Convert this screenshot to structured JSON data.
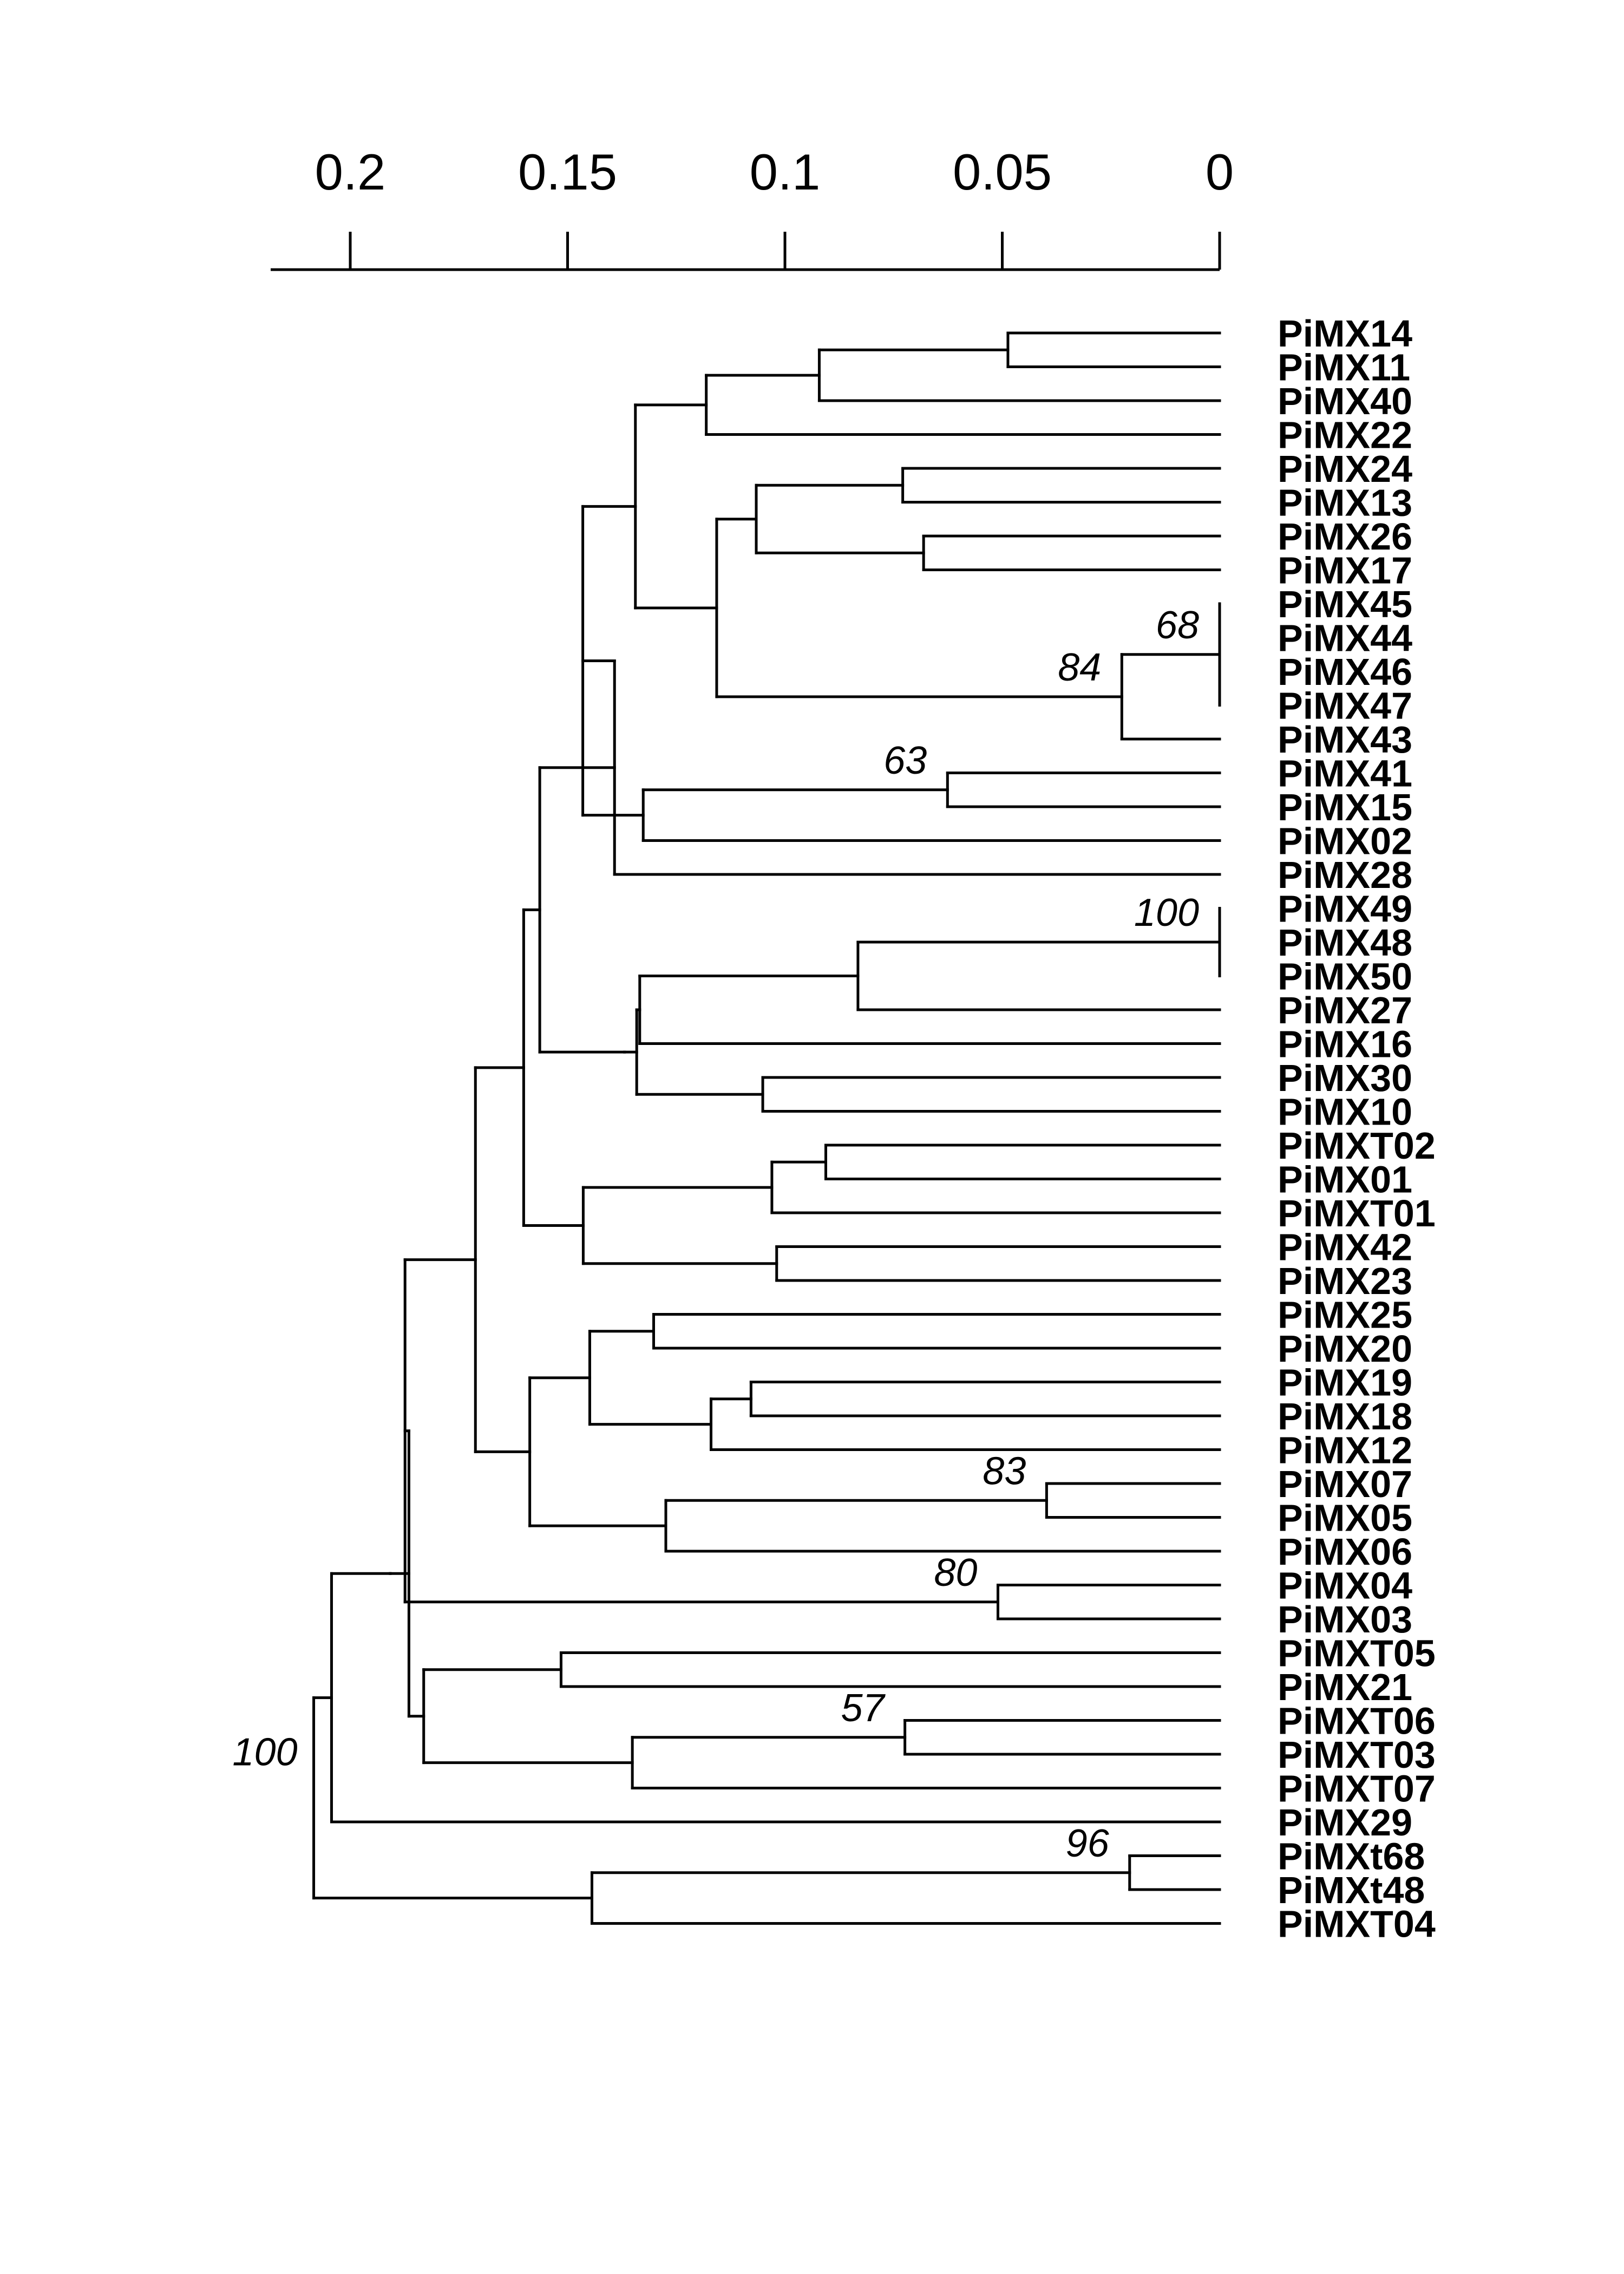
{
  "axis": {
    "ticks": [
      "0.2",
      "0.15",
      "0.1",
      "0.05",
      "0"
    ],
    "tick_values": [
      0.2,
      0.15,
      0.1,
      0.05,
      0
    ]
  },
  "leaves": [
    "PiMX14",
    "PiMX11",
    "PiMX40",
    "PiMX22",
    "PiMX24",
    "PiMX13",
    "PiMX26",
    "PiMX17",
    "PiMX45",
    "PiMX44",
    "PiMX46",
    "PiMX47",
    "PiMX43",
    "PiMX41",
    "PiMX15",
    "PiMX02",
    "PiMX28",
    "PiMX49",
    "PiMX48",
    "PiMX50",
    "PiMX27",
    "PiMX16",
    "PiMX30",
    "PiMX10",
    "PiMXT02",
    "PiMX01",
    "PiMXT01",
    "PiMX42",
    "PiMX23",
    "PiMX25",
    "PiMX20",
    "PiMX19",
    "PiMX18",
    "PiMX12",
    "PiMX07",
    "PiMX05",
    "PiMX06",
    "PiMX04",
    "PiMX03",
    "PiMXT05",
    "PiMX21",
    "PiMXT06",
    "PiMXT03",
    "PiMXT07",
    "PiMX29",
    "PiMXt68",
    "PiMXt48",
    "PiMXT04"
  ],
  "tree": {
    "d": 0.2084,
    "boot": "100",
    "c": [
      {
        "d": 0.2043,
        "c": [
          {
            "d": 0.1908,
            "c": [
              {
                "d": 0.1865,
                "c": [
                  {
                    "d": 0.1874,
                    "c": [
                      {
                        "d": 0.1712,
                        "c": [
                          {
                            "d": 0.1601,
                            "c": [
                              {
                                "d": 0.1564,
                                "c": [
                                  {
                                    "d": 0.1392,
                                    "c": [
                                      {
                                        "d": 0.1465,
                                        "c": [
                                          {
                                            "d": 0.1344,
                                            "c": [
                                              {
                                                "d": 0.1181,
                                                "c": [
                                                  {
                                                    "d": 0.0921,
                                                    "c": [
                                                      {
                                                        "d": 0.0487,
                                                        "c": [
                                                          {
                                                            "l": 0
                                                          },
                                                          {
                                                            "l": 1
                                                          }
                                                        ]
                                                      },
                                                      {
                                                        "l": 2
                                                      }
                                                    ]
                                                  },
                                                  {
                                                    "l": 3
                                                  }
                                                ]
                                              },
                                              {
                                                "d": 0.1157,
                                                "c": [
                                                  {
                                                    "d": 0.1066,
                                                    "c": [
                                                      {
                                                        "d": 0.0729,
                                                        "c": [
                                                          {
                                                            "l": 4
                                                          },
                                                          {
                                                            "l": 5
                                                          }
                                                        ]
                                                      },
                                                      {
                                                        "d": 0.0681,
                                                        "c": [
                                                          {
                                                            "l": 6
                                                          },
                                                          {
                                                            "l": 7
                                                          }
                                                        ]
                                                      }
                                                    ]
                                                  },
                                                  {
                                                    "d": 0.0225,
                                                    "boot": "84",
                                                    "c": [
                                                      {
                                                        "d": 0,
                                                        "boot": "68",
                                                        "c": [
                                                          {
                                                            "l": 8
                                                          },
                                                          {
                                                            "l": 9
                                                          },
                                                          {
                                                            "l": 10
                                                          },
                                                          {
                                                            "l": 11
                                                          }
                                                        ]
                                                      },
                                                      {
                                                        "l": 12
                                                      }
                                                    ]
                                                  }
                                                ]
                                              }
                                            ]
                                          },
                                          {
                                            "d": 0.1326,
                                            "c": [
                                              {
                                                "d": 0.0626,
                                                "boot": "63",
                                                "c": [
                                                  {
                                                    "l": 13
                                                  },
                                                  {
                                                    "l": 14
                                                  }
                                                ]
                                              },
                                              {
                                                "l": 15
                                              }
                                            ]
                                          }
                                        ]
                                      },
                                      {
                                        "l": 16
                                      }
                                    ]
                                  },
                                  {
                                    "d": 0.1369,
                                    "c": [
                                      {
                                        "d": 0.1341,
                                        "c": [
                                          {
                                            "d": 0.1334,
                                            "c": [
                                              {
                                                "d": 0.0832,
                                                "c": [
                                                  {
                                                    "d": 0,
                                                    "boot": "100",
                                                    "c": [
                                                      {
                                                        "l": 17
                                                      },
                                                      {
                                                        "l": 18
                                                      },
                                                      {
                                                        "l": 19
                                                      }
                                                    ]
                                                  },
                                                  {
                                                    "l": 20
                                                  }
                                                ]
                                              },
                                              {
                                                "l": 21
                                              }
                                            ]
                                          },
                                          {
                                            "d": 0.1051,
                                            "c": [
                                              {
                                                "l": 22
                                              },
                                              {
                                                "l": 23
                                              }
                                            ]
                                          }
                                        ]
                                      }
                                    ]
                                  }
                                ]
                              },
                              {
                                "d": 0.1464,
                                "c": [
                                  {
                                    "d": 0.103,
                                    "c": [
                                      {
                                        "d": 0.0906,
                                        "c": [
                                          {
                                            "l": 24
                                          },
                                          {
                                            "l": 25
                                          }
                                        ]
                                      },
                                      {
                                        "l": 26
                                      }
                                    ]
                                  },
                                  {
                                    "d": 0.1019,
                                    "c": [
                                      {
                                        "l": 27
                                      },
                                      {
                                        "l": 28
                                      }
                                    ]
                                  }
                                ]
                              }
                            ]
                          },
                          {
                            "d": 0.1587,
                            "c": [
                              {
                                "d": 0.1449,
                                "c": [
                                  {
                                    "d": 0.1302,
                                    "c": [
                                      {
                                        "l": 29
                                      },
                                      {
                                        "l": 30
                                      }
                                    ]
                                  },
                                  {
                                    "d": 0.117,
                                    "c": [
                                      {
                                        "d": 0.1078,
                                        "c": [
                                          {
                                            "l": 31
                                          },
                                          {
                                            "l": 32
                                          }
                                        ]
                                      },
                                      {
                                        "l": 33
                                      }
                                    ]
                                  }
                                ]
                              },
                              {
                                "d": 0.1274,
                                "c": [
                                  {
                                    "d": 0.0398,
                                    "boot": "83",
                                    "c": [
                                      {
                                        "l": 34
                                      },
                                      {
                                        "l": 35
                                      }
                                    ]
                                  },
                                  {
                                    "l": 36
                                  }
                                ]
                              }
                            ]
                          }
                        ]
                      },
                      {
                        "d": 0.051,
                        "boot": "80",
                        "c": [
                          {
                            "l": 37
                          },
                          {
                            "l": 38
                          }
                        ]
                      }
                    ]
                  },
                  {
                    "d": 0.1831,
                    "c": [
                      {
                        "d": 0.1515,
                        "c": [
                          {
                            "l": 39
                          },
                          {
                            "l": 40
                          }
                        ]
                      },
                      {
                        "d": 0.1351,
                        "c": [
                          {
                            "d": 0.0724,
                            "boot": "57",
                            "c": [
                              {
                                "l": 41
                              },
                              {
                                "l": 42
                              }
                            ]
                          },
                          {
                            "l": 43
                          }
                        ]
                      }
                    ]
                  }
                ]
              }
            ]
          },
          {
            "l": 44
          }
        ]
      },
      {
        "d": 0.1444,
        "c": [
          {
            "d": 0.0207,
            "boot": "96",
            "c": [
              {
                "l": 45
              },
              {
                "l": 46
              }
            ]
          },
          {
            "l": 47
          }
        ]
      }
    ]
  }
}
